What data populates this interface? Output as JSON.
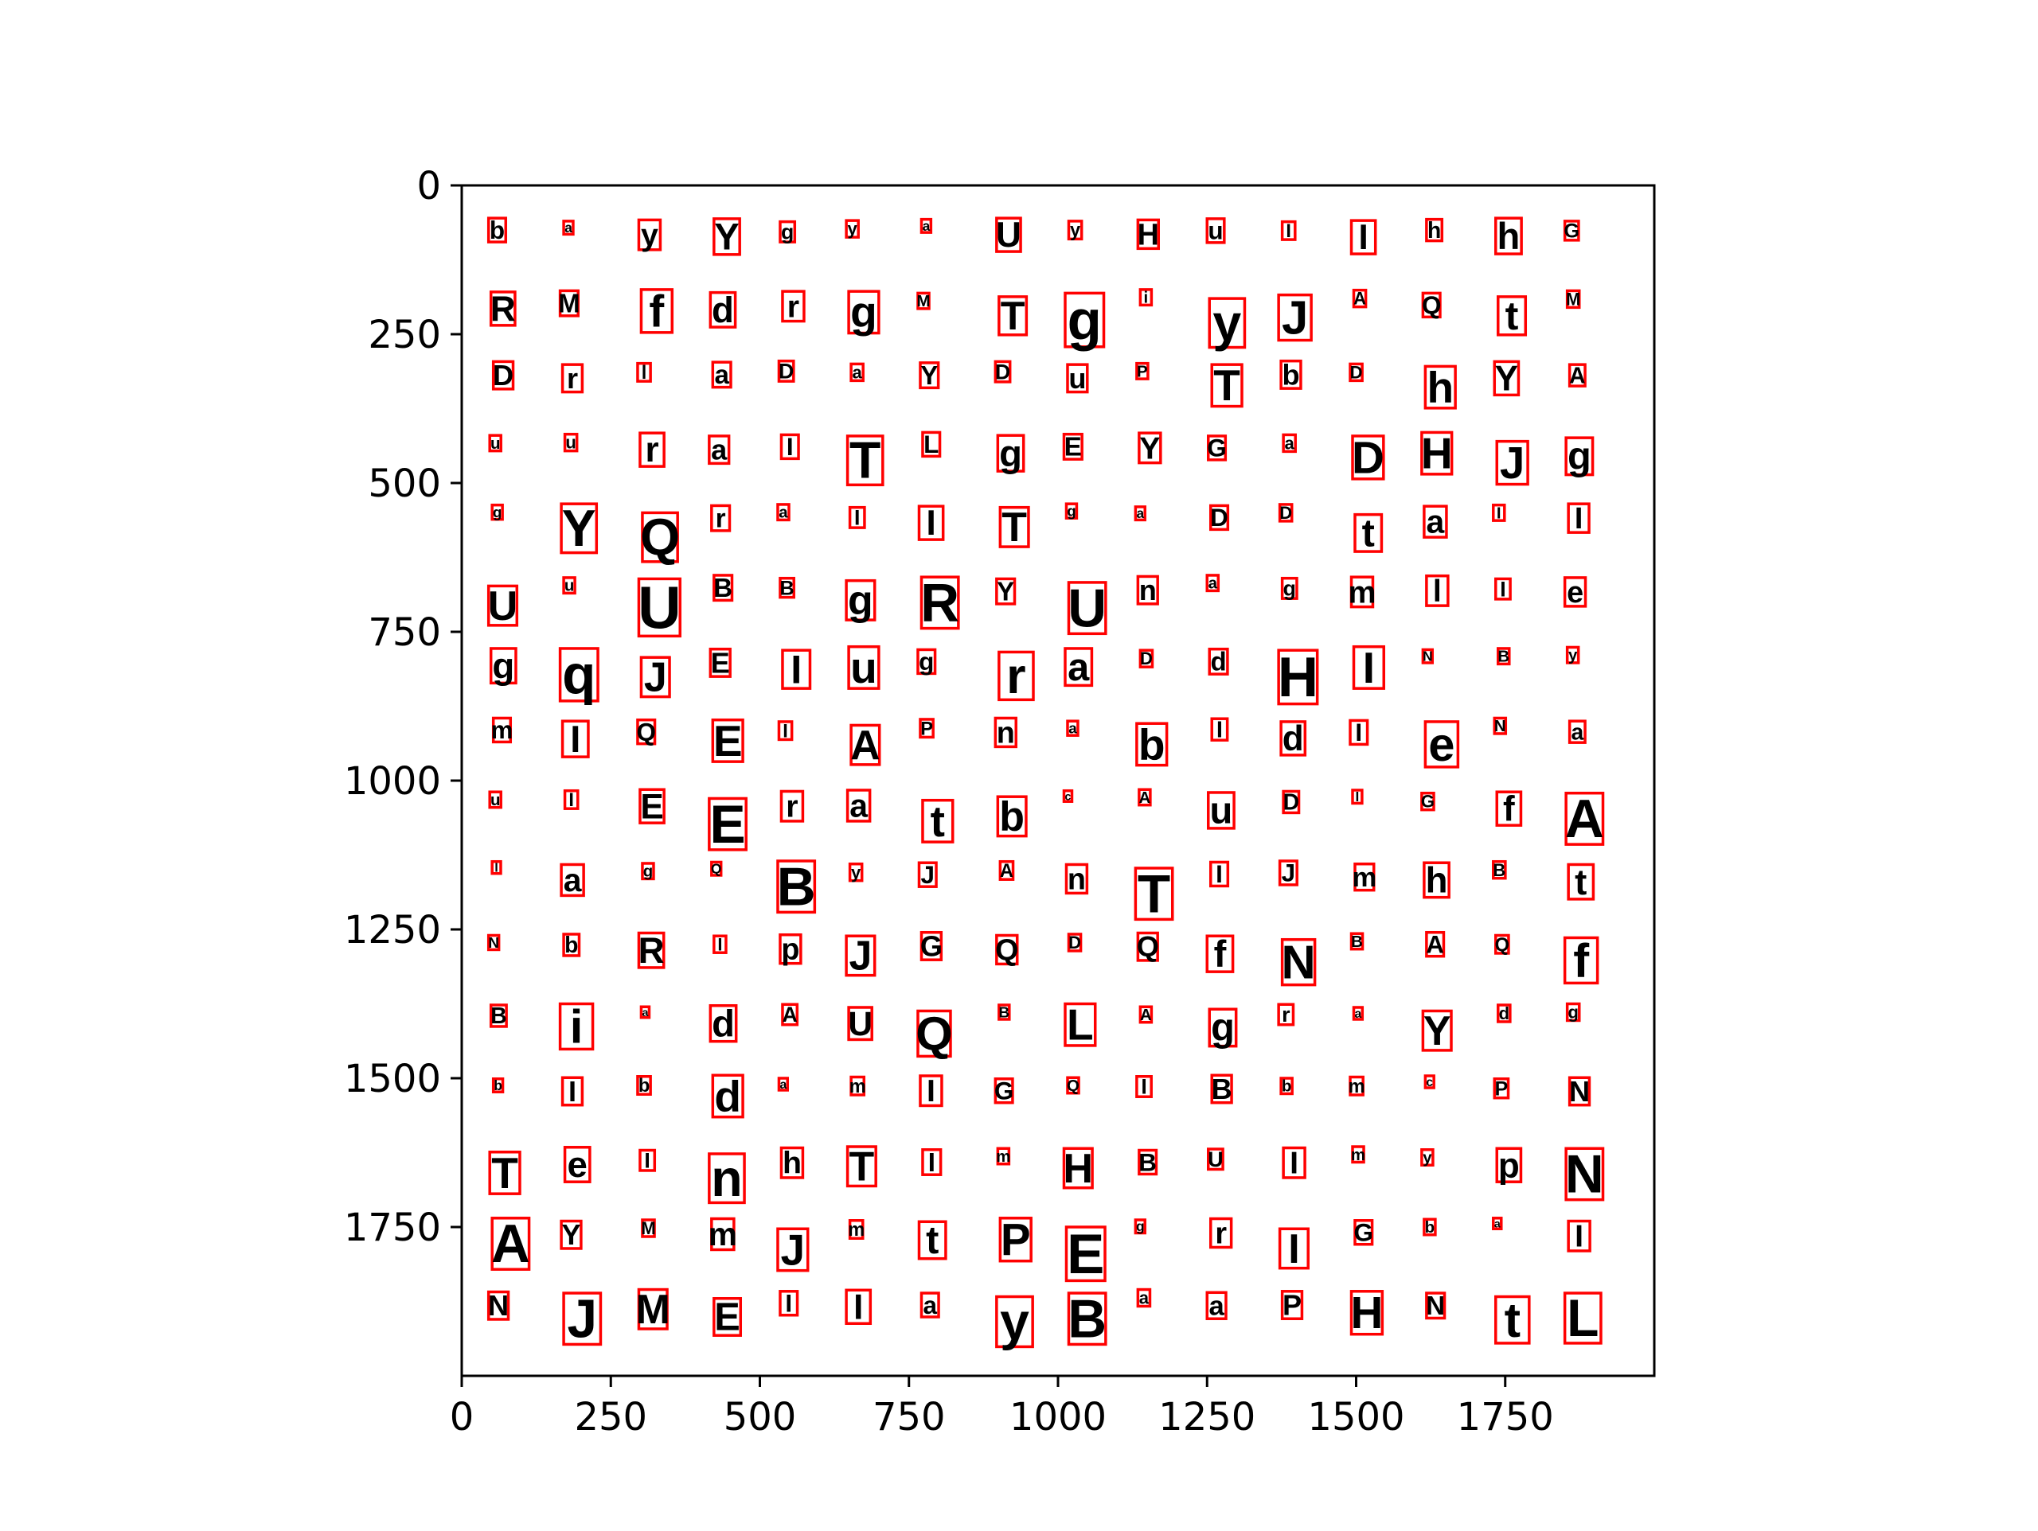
{
  "chart_data": {
    "type": "scatter",
    "title": "",
    "xlabel": "",
    "ylabel": "",
    "xlim": [
      0,
      2000
    ],
    "ylim": [
      2000,
      0
    ],
    "y_inverted": true,
    "grid": false,
    "legend": "none",
    "x_ticks": [
      0,
      250,
      500,
      750,
      1000,
      1250,
      1500,
      1750
    ],
    "y_ticks": [
      0,
      250,
      500,
      750,
      1000,
      1250,
      1500,
      1750
    ],
    "x_tick_labels": [
      "0",
      "250",
      "500",
      "750",
      "1000",
      "1250",
      "1500",
      "1750"
    ],
    "y_tick_labels": [
      "0",
      "250",
      "500",
      "750",
      "1000",
      "1250",
      "1500",
      "1750"
    ],
    "box_color": "#ff0000",
    "text_color": "#000000",
    "grid_columns_x": [
      45,
      165,
      295,
      415,
      530,
      645,
      765,
      895,
      1010,
      1130,
      1250,
      1370,
      1490,
      1610,
      1730,
      1850
    ],
    "grid_rows_y": [
      55,
      175,
      295,
      415,
      535,
      655,
      775,
      895,
      1015,
      1135,
      1255,
      1375,
      1495,
      1615,
      1735,
      1855
    ],
    "rows": [
      {
        "chars": [
          "b",
          "a",
          "y",
          "Y",
          "g",
          "y",
          "a",
          "U",
          "y",
          "H",
          "u",
          "I",
          "I",
          "h",
          "h",
          "G"
        ],
        "sizes": [
          40,
          22,
          50,
          60,
          34,
          28,
          22,
          56,
          30,
          48,
          40,
          30,
          56,
          36,
          60,
          32
        ]
      },
      {
        "chars": [
          "R",
          "M",
          "f",
          "d",
          "r",
          "g",
          "M",
          "T",
          "g",
          "i",
          "y",
          "J",
          "A",
          "Q",
          "t",
          "M"
        ],
        "sizes": [
          56,
          42,
          72,
          58,
          50,
          70,
          26,
          64,
          90,
          26,
          82,
          76,
          28,
          40,
          64,
          28
        ]
      },
      {
        "chars": [
          "D",
          "r",
          "l",
          "a",
          "D",
          "a",
          "Y",
          "D",
          "u",
          "P",
          "T",
          "b",
          "D",
          "h",
          "Y",
          "A"
        ],
        "sizes": [
          46,
          46,
          30,
          42,
          34,
          28,
          42,
          34,
          46,
          26,
          70,
          46,
          28,
          70,
          56,
          36
        ]
      },
      {
        "chars": [
          "u",
          "u",
          "r",
          "a",
          "I",
          "T",
          "L",
          "g",
          "E",
          "Y",
          "G",
          "a",
          "D",
          "H",
          "J",
          "g"
        ],
        "sizes": [
          26,
          28,
          56,
          46,
          40,
          82,
          40,
          60,
          42,
          50,
          40,
          28,
          72,
          70,
          72,
          62
        ]
      },
      {
        "chars": [
          "g",
          "Y",
          "Q",
          "r",
          "a",
          "I",
          "I",
          "T",
          "g",
          "a",
          "D",
          "D",
          "t",
          "a",
          "I",
          "I"
        ],
        "sizes": [
          24,
          82,
          82,
          42,
          26,
          34,
          56,
          66,
          24,
          22,
          40,
          28,
          62,
          52,
          26,
          48
        ]
      },
      {
        "chars": [
          "U",
          "u",
          "U",
          "B",
          "B",
          "g",
          "R",
          "Y",
          "U",
          "n",
          "a",
          "g",
          "m",
          "l",
          "I",
          "e"
        ],
        "sizes": [
          66,
          26,
          96,
          42,
          32,
          66,
          86,
          42,
          86,
          46,
          26,
          34,
          50,
          50,
          34,
          48
        ]
      },
      {
        "chars": [
          "g",
          "q",
          "J",
          "E",
          "I",
          "u",
          "g",
          "r",
          "a",
          "D",
          "d",
          "H",
          "I",
          "N",
          "B",
          "y"
        ],
        "sizes": [
          58,
          88,
          66,
          46,
          64,
          70,
          40,
          80,
          62,
          28,
          42,
          90,
          70,
          22,
          26,
          26
        ]
      },
      {
        "chars": [
          "m",
          "I",
          "Q",
          "E",
          "I",
          "A",
          "P",
          "n",
          "a",
          "b",
          "I",
          "d",
          "I",
          "e",
          "N",
          "a"
        ],
        "sizes": [
          40,
          60,
          40,
          70,
          30,
          66,
          30,
          48,
          24,
          70,
          36,
          56,
          40,
          76,
          26,
          36
        ]
      },
      {
        "chars": [
          "u",
          "I",
          "E",
          "E",
          "r",
          "a",
          "t",
          "b",
          "c",
          "A",
          "u",
          "D",
          "I",
          "G",
          "f",
          "A"
        ],
        "sizes": [
          26,
          30,
          56,
          86,
          50,
          52,
          70,
          66,
          18,
          26,
          60,
          36,
          22,
          28,
          56,
          86
        ]
      },
      {
        "chars": [
          "I",
          "a",
          "g",
          "Q",
          "B",
          "y",
          "J",
          "A",
          "n",
          "T",
          "I",
          "J",
          "m",
          "h",
          "B",
          "t"
        ],
        "sizes": [
          20,
          52,
          26,
          22,
          86,
          28,
          40,
          30,
          48,
          86,
          40,
          40,
          44,
          58,
          28,
          58
        ]
      },
      {
        "chars": [
          "N",
          "b",
          "R",
          "I",
          "p",
          "J",
          "G",
          "Q",
          "D",
          "Q",
          "f",
          "N",
          "B",
          "A",
          "Q",
          "f"
        ],
        "sizes": [
          24,
          36,
          58,
          28,
          48,
          66,
          46,
          48,
          28,
          46,
          60,
          76,
          26,
          40,
          30,
          76
        ]
      },
      {
        "chars": [
          "B",
          "i",
          "a",
          "d",
          "A",
          "U",
          "Q",
          "B",
          "L",
          "A",
          "g",
          "r",
          "a",
          "Y",
          "d",
          "g"
        ],
        "sizes": [
          36,
          76,
          18,
          60,
          34,
          54,
          76,
          24,
          70,
          26,
          62,
          34,
          20,
          66,
          28,
          28
        ]
      },
      {
        "chars": [
          "b",
          "I",
          "b",
          "d",
          "a",
          "m",
          "I",
          "G",
          "Q",
          "I",
          "B",
          "b",
          "m",
          "c",
          "P",
          "N"
        ],
        "sizes": [
          22,
          46,
          30,
          70,
          20,
          30,
          50,
          40,
          26,
          34,
          46,
          26,
          30,
          20,
          32,
          46
        ]
      },
      {
        "chars": [
          "T",
          "e",
          "I",
          "n",
          "h",
          "T",
          "I",
          "m",
          "H",
          "B",
          "U",
          "I",
          "m",
          "y",
          "p",
          "N"
        ],
        "sizes": [
          70,
          58,
          34,
          82,
          50,
          66,
          42,
          26,
          66,
          40,
          34,
          50,
          26,
          26,
          56,
          86
        ]
      },
      {
        "chars": [
          "A",
          "Y",
          "M",
          "m",
          "J",
          "m",
          "t",
          "P",
          "E",
          "g",
          "r",
          "I",
          "G",
          "b",
          "a",
          "I"
        ],
        "sizes": [
          86,
          46,
          28,
          52,
          70,
          30,
          62,
          72,
          90,
          22,
          48,
          66,
          40,
          26,
          18,
          50
        ]
      },
      {
        "chars": [
          "N",
          "J",
          "M",
          "E",
          "I",
          "I",
          "a",
          "y",
          "B",
          "a",
          "a",
          "P",
          "H",
          "N",
          "t",
          "L"
        ],
        "sizes": [
          46,
          86,
          66,
          62,
          40,
          56,
          40,
          84,
          86,
          28,
          44,
          46,
          72,
          42,
          78,
          84
        ]
      }
    ]
  }
}
